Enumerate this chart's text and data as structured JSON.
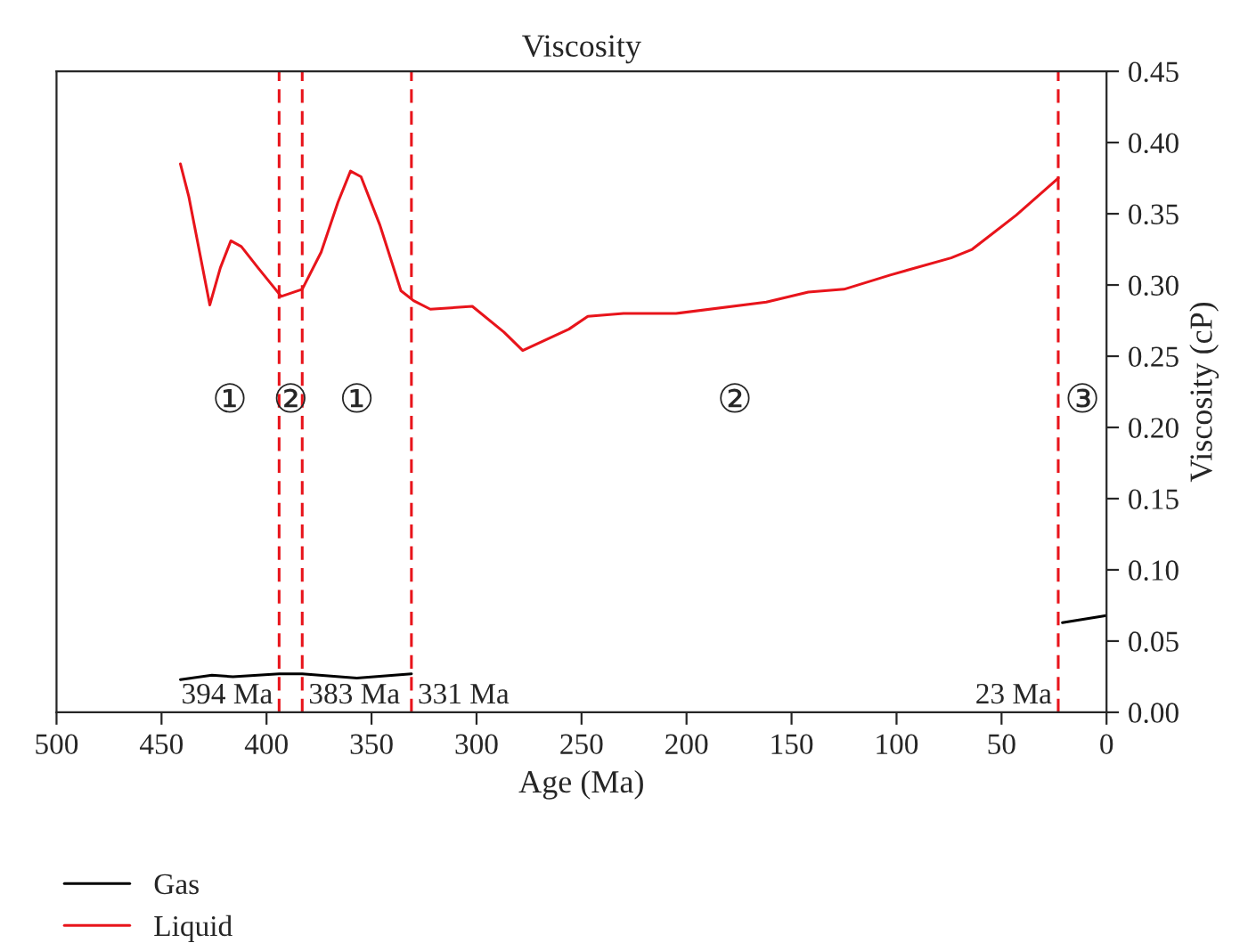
{
  "chart_data": {
    "type": "line",
    "title": "Viscosity",
    "xlabel": "Age (Ma)",
    "ylabel": "Viscosity (cP)",
    "xlim": [
      500,
      0
    ],
    "xticks": [
      500,
      450,
      400,
      350,
      300,
      250,
      200,
      150,
      100,
      50,
      0
    ],
    "ylim": [
      0,
      0.45
    ],
    "yticks": [
      {
        "value": 0,
        "label": "0.00"
      },
      {
        "value": 0.05,
        "label": "0.05"
      },
      {
        "value": 0.1,
        "label": "0.10"
      },
      {
        "value": 0.15,
        "label": "0.15"
      },
      {
        "value": 0.2,
        "label": "0.20"
      },
      {
        "value": 0.25,
        "label": "0.25"
      },
      {
        "value": 0.3,
        "label": "0.30"
      },
      {
        "value": 0.35,
        "label": "0.35"
      },
      {
        "value": 0.4,
        "label": "0.40"
      },
      {
        "value": 0.45,
        "label": "0.45"
      }
    ],
    "series": [
      {
        "name": "Gas",
        "color": "#000000",
        "x": [
          441,
          426,
          416,
          394,
          383,
          357,
          331,
          200,
          21,
          0
        ],
        "values": [
          0.023,
          0.026,
          0.025,
          0.027,
          0.027,
          0.024,
          0.027,
          null,
          0.063,
          0.068
        ]
      },
      {
        "name": "Liquid",
        "color": "#e8141b",
        "x": [
          441,
          437,
          427,
          422,
          417,
          412,
          404,
          393,
          383,
          374,
          366,
          360,
          355,
          346,
          336,
          330,
          322,
          302,
          287,
          278,
          256,
          247,
          230,
          205,
          162,
          142,
          125,
          103,
          74,
          64,
          43,
          23
        ],
        "values": [
          0.385,
          0.362,
          0.286,
          0.312,
          0.331,
          0.327,
          0.312,
          0.292,
          0.297,
          0.323,
          0.358,
          0.38,
          0.376,
          0.342,
          0.296,
          0.289,
          0.283,
          0.285,
          0.267,
          0.254,
          0.269,
          0.278,
          0.28,
          0.28,
          0.288,
          0.295,
          0.297,
          0.307,
          0.319,
          0.325,
          0.349,
          0.375
        ]
      }
    ],
    "ref_lines": [
      {
        "axis": "x",
        "value": 394,
        "label": "394 Ma",
        "color": "#e8141b",
        "line_style": "dashed"
      },
      {
        "axis": "x",
        "value": 383,
        "label": "383 Ma",
        "color": "#e8141b",
        "line_style": "dashed"
      },
      {
        "axis": "x",
        "value": 331,
        "label": "331 Ma",
        "color": "#e8141b",
        "line_style": "dashed"
      },
      {
        "axis": "x",
        "value": 23,
        "label": "23 Ma",
        "color": "#e8141b",
        "line_style": "dashed"
      }
    ],
    "annotations": [
      "①",
      "②",
      "①",
      "②",
      "③"
    ],
    "legend": "bottom left",
    "grid": false
  }
}
